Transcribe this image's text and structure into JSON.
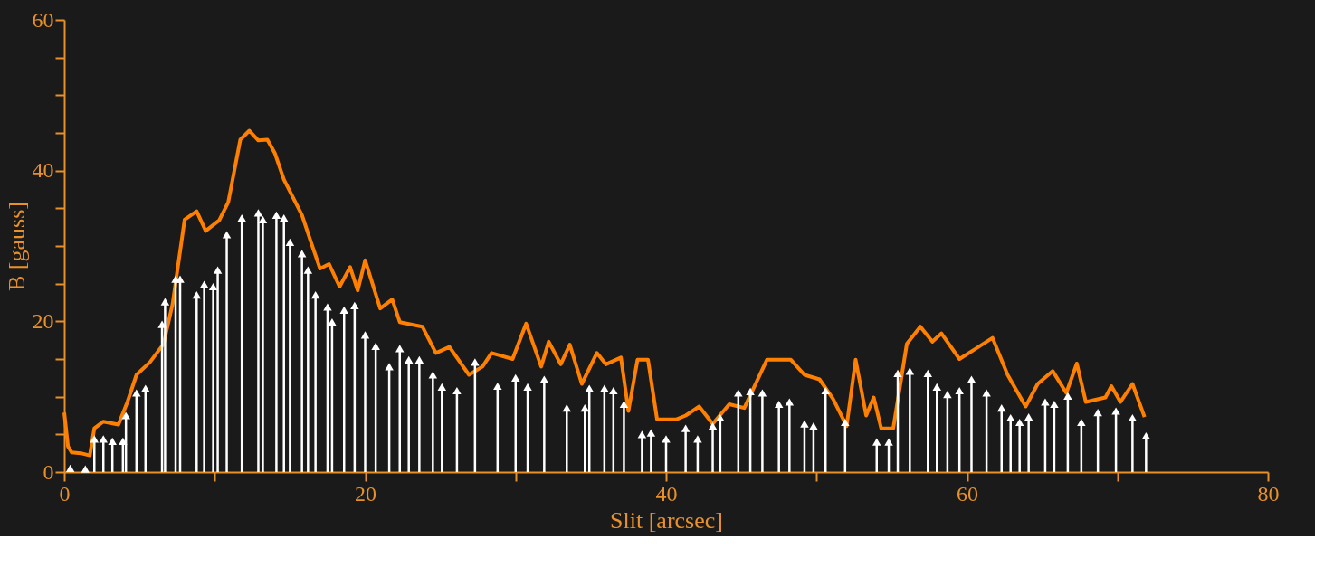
{
  "chart_data": {
    "type": "line",
    "xlabel": "Slit [arcsec]",
    "ylabel": "B [gauss]",
    "xlim": [
      0,
      80
    ],
    "ylim": [
      0,
      60
    ],
    "xticks": [
      0,
      {
        "value": 10,
        "label": null
      },
      20,
      {
        "value": 30,
        "label": null
      },
      40,
      {
        "value": 50,
        "label": null
      },
      60,
      {
        "value": 70,
        "label": null
      },
      80
    ],
    "yticks": [
      0,
      {
        "value": 5,
        "label": null
      },
      {
        "value": 10,
        "label": null
      },
      {
        "value": 15,
        "label": null
      },
      20,
      {
        "value": 25,
        "label": null
      },
      {
        "value": 30,
        "label": null
      },
      {
        "value": 35,
        "label": null
      },
      40,
      {
        "value": 45,
        "label": null
      },
      {
        "value": 50,
        "label": null
      },
      {
        "value": 55,
        "label": null
      },
      60
    ],
    "series": [
      {
        "color": "#ff8000",
        "line_style": "solid",
        "marker": "none",
        "x": [
          0,
          0.25,
          0.5,
          1.1,
          1.7,
          2.0,
          2.6,
          3.6,
          4.2,
          4.8,
          5.7,
          6.6,
          7.2,
          8.0,
          8.8,
          9.4,
          10.3,
          10.9,
          11.7,
          12.3,
          12.9,
          13.5,
          14.0,
          14.6,
          15.8,
          16.4,
          17.0,
          17.6,
          18.3,
          19.0,
          19.5,
          20.0,
          21.0,
          21.8,
          22.3,
          23.8,
          24.7,
          25.6,
          26.9,
          27.8,
          28.4,
          29.8,
          30.7,
          31.7,
          32.2,
          33.0,
          33.6,
          34.4,
          35.4,
          36.0,
          37.0,
          37.5,
          38.1,
          38.8,
          39.4,
          40.7,
          41.3,
          42.2,
          43.1,
          44.2,
          45.2,
          46.7,
          48.3,
          49.2,
          50.2,
          51.1,
          52.0,
          52.6,
          53.3,
          53.8,
          54.3,
          55.1,
          56.0,
          56.9,
          57.7,
          58.3,
          59.5,
          60.6,
          61.7,
          62.7,
          63.9,
          64.7,
          65.7,
          66.6,
          67.3,
          67.9,
          69.2,
          69.6,
          70.2,
          71.0,
          71.8
        ],
        "values": [
          7.9,
          3.4,
          2.6,
          2.5,
          2.2,
          5.8,
          6.7,
          6.3,
          9.3,
          12.9,
          14.6,
          17.0,
          22.3,
          33.5,
          34.6,
          32.0,
          33.4,
          35.8,
          44.1,
          45.3,
          44.0,
          44.1,
          42.3,
          38.8,
          34.1,
          30.5,
          27.0,
          27.6,
          24.6,
          27.2,
          24.1,
          28.1,
          21.7,
          22.9,
          19.9,
          19.3,
          15.8,
          16.6,
          12.9,
          14.0,
          15.8,
          15.0,
          19.7,
          14.0,
          17.3,
          14.3,
          16.9,
          11.7,
          15.8,
          14.3,
          15.2,
          8.1,
          14.9,
          14.9,
          7.0,
          7.0,
          7.5,
          8.7,
          6.4,
          9.0,
          8.5,
          14.9,
          14.9,
          12.9,
          12.3,
          9.7,
          6.1,
          14.9,
          7.5,
          9.9,
          5.8,
          5.8,
          17.0,
          19.3,
          17.3,
          18.4,
          15.0,
          16.4,
          17.8,
          12.9,
          8.7,
          11.7,
          13.4,
          10.5,
          14.4,
          9.3,
          9.9,
          11.4,
          9.3,
          11.7,
          7.3
        ]
      },
      {
        "type": "lollipop",
        "color": "#ffffff",
        "marker": "triangle",
        "x": [
          0.4,
          1.4,
          2.0,
          2.6,
          3.2,
          3.9,
          4.1,
          4.8,
          5.4,
          6.5,
          6.7,
          7.4,
          7.7,
          8.8,
          9.3,
          9.9,
          10.2,
          10.8,
          11.8,
          12.9,
          13.2,
          14.1,
          14.6,
          15.0,
          15.8,
          16.2,
          16.7,
          17.5,
          17.8,
          18.6,
          19.3,
          20.0,
          20.7,
          21.6,
          22.3,
          22.9,
          23.6,
          24.5,
          25.1,
          26.1,
          27.3,
          28.8,
          30.0,
          30.8,
          31.9,
          33.4,
          34.6,
          34.9,
          35.9,
          36.5,
          37.2,
          38.4,
          39.0,
          40.0,
          41.3,
          42.1,
          43.1,
          43.6,
          44.8,
          45.6,
          46.4,
          47.5,
          48.2,
          49.2,
          49.8,
          50.6,
          51.9,
          54.0,
          54.8,
          55.4,
          56.2,
          57.4,
          58.0,
          58.7,
          59.5,
          60.3,
          61.3,
          62.3,
          62.9,
          63.5,
          64.1,
          65.2,
          65.8,
          66.7,
          67.6,
          68.7,
          69.9,
          71.0,
          71.9
        ],
        "values": [
          0.5,
          0.4,
          4.4,
          4.4,
          4.1,
          4.1,
          7.5,
          10.5,
          11.1,
          19.6,
          22.6,
          25.6,
          25.6,
          23.5,
          24.9,
          24.6,
          26.8,
          31.5,
          33.7,
          34.4,
          33.5,
          34.1,
          33.7,
          30.5,
          29.0,
          26.8,
          23.5,
          21.9,
          19.9,
          21.5,
          22.1,
          18.2,
          16.7,
          14.0,
          16.4,
          14.9,
          14.9,
          12.9,
          11.3,
          10.8,
          14.6,
          11.4,
          12.5,
          11.3,
          12.3,
          8.5,
          8.5,
          11.1,
          11.1,
          10.8,
          9.0,
          5.0,
          5.2,
          4.4,
          5.8,
          4.4,
          6.1,
          7.2,
          10.5,
          10.7,
          10.5,
          9.0,
          9.3,
          6.4,
          6.1,
          10.8,
          6.6,
          4.0,
          4.0,
          13.1,
          13.4,
          13.1,
          11.3,
          10.3,
          10.8,
          12.3,
          10.5,
          8.5,
          7.2,
          6.6,
          7.3,
          9.3,
          9.0,
          10.1,
          6.6,
          7.9,
          8.1,
          7.2,
          4.8
        ]
      }
    ]
  }
}
